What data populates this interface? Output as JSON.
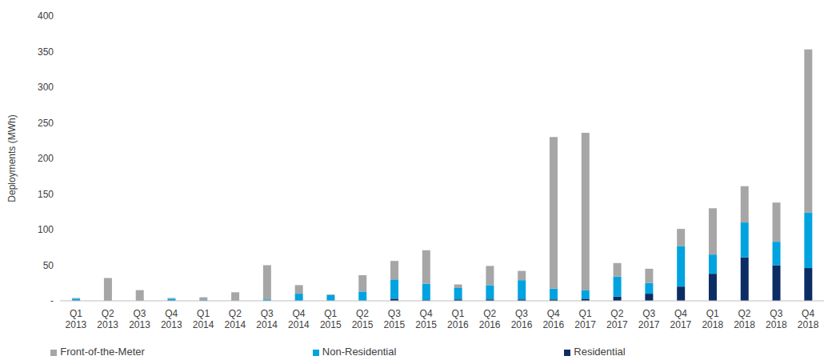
{
  "chart_data": {
    "type": "bar",
    "stacked": true,
    "grid": false,
    "legend": "bottom",
    "y_label": "Deployments (MWh)",
    "categories": [
      "Q1 2013",
      "Q2 2013",
      "Q3 2013",
      "Q4 2013",
      "Q1 2014",
      "Q2 2014",
      "Q3 2014",
      "Q4 2014",
      "Q1 2015",
      "Q2 2015",
      "Q3 2015",
      "Q4 2015",
      "Q1 2016",
      "Q2 2016",
      "Q3 2016",
      "Q4 2016",
      "Q1 2017",
      "Q2 2017",
      "Q3 2017",
      "Q4 2017",
      "Q1 2018",
      "Q2 2018",
      "Q3 2018",
      "Q4 2018"
    ],
    "series": [
      {
        "name": "Residential",
        "color": "#0b2d63",
        "values": [
          0,
          0,
          0,
          0,
          0,
          0,
          0,
          0,
          0,
          0,
          3,
          1,
          2,
          2,
          2,
          2,
          3,
          6,
          10,
          20,
          38,
          61,
          50,
          46
        ]
      },
      {
        "name": "Non-Residential",
        "color": "#00a3e0",
        "values": [
          3,
          0,
          0,
          3,
          1,
          0,
          2,
          10,
          8,
          13,
          27,
          23,
          16,
          20,
          27,
          15,
          12,
          28,
          15,
          57,
          27,
          49,
          33,
          78
        ]
      },
      {
        "name": "Front-of-the-Meter",
        "color": "#a6a6a6",
        "values": [
          1,
          32,
          15,
          1,
          4,
          12,
          48,
          12,
          1,
          23,
          26,
          47,
          5,
          27,
          13,
          213,
          221,
          19,
          20,
          24,
          65,
          51,
          55,
          229
        ]
      }
    ],
    "ylim": [
      0,
      400
    ],
    "yticks": [
      {
        "value": 0,
        "label": "-"
      },
      50,
      100,
      150,
      200,
      250,
      300,
      350,
      400
    ]
  }
}
